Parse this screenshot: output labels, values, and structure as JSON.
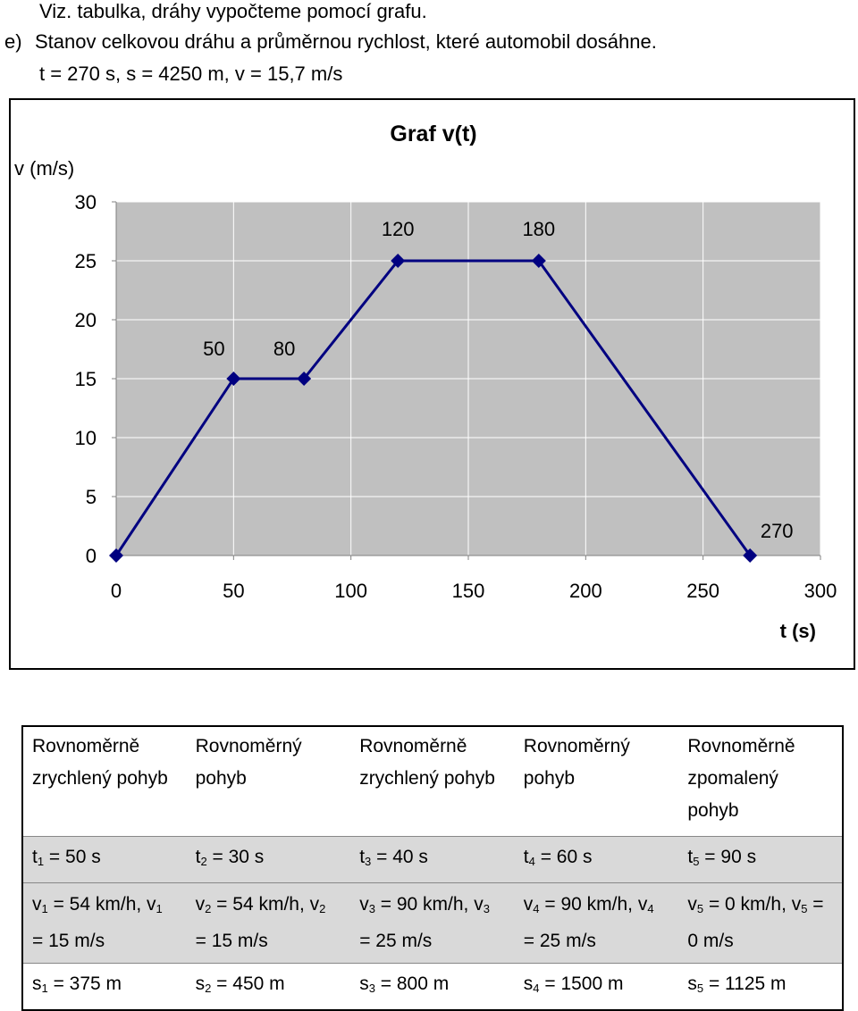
{
  "text": {
    "line1": "Viz. tabulka, dráhy vypočteme pomocí grafu.",
    "line2_marker": "e)",
    "line2": "Stanov celkovou dráhu a průměrnou rychlost, které automobil dosáhne.",
    "line3": "t = 270 s, s = 4250 m, v = 15,7 m/s"
  },
  "chart_data": {
    "type": "line",
    "title": "Graf v(t)",
    "xlabel": "t (s)",
    "ylabel": "v (m/s)",
    "xlim": [
      0,
      300
    ],
    "ylim": [
      0,
      30
    ],
    "xticks": [
      0,
      50,
      100,
      150,
      200,
      250,
      300
    ],
    "yticks": [
      0,
      5,
      10,
      15,
      20,
      25,
      30
    ],
    "grid": true,
    "plot_background": "#c0c0c0",
    "line_color": "#000080",
    "series": [
      {
        "x": [
          0,
          50,
          80,
          120,
          180,
          270
        ],
        "y": [
          0,
          15,
          15,
          25,
          25,
          0
        ]
      }
    ],
    "annotations": [
      {
        "text": "50",
        "x": 50,
        "y": 15
      },
      {
        "text": "80",
        "x": 80,
        "y": 15
      },
      {
        "text": "120",
        "x": 120,
        "y": 25
      },
      {
        "text": "180",
        "x": 180,
        "y": 25
      },
      {
        "text": "270",
        "x": 270,
        "y": 0
      }
    ]
  },
  "table": {
    "rows": [
      [
        "Rovnoměrně zrychlený pohyb",
        "Rovnoměrný pohyb",
        "Rovnoměrně zrychlený pohyb",
        "Rovnoměrný pohyb",
        "Rovnoměrně zpomalený pohyb"
      ],
      [
        "t₁ = 50 s",
        "t₂ = 30 s",
        "t₃ = 40 s",
        "t₄ = 60 s",
        "t₅ = 90 s"
      ],
      [
        "v₁ = 54 km/h, v₁ = 15 m/s",
        "v₂ = 54 km/h, v₂ = 15 m/s",
        "v₃ = 90 km/h, v₃ = 25 m/s",
        "v₄ = 90 km/h, v₄ = 25 m/s",
        "v₅ = 0 km/h, v₅ = 0 m/s"
      ],
      [
        "s₁ = 375 m",
        "s₂ = 450 m",
        "s₃ = 800 m",
        "s₄ = 1500 m",
        "s₅ = 1125 m"
      ]
    ]
  }
}
